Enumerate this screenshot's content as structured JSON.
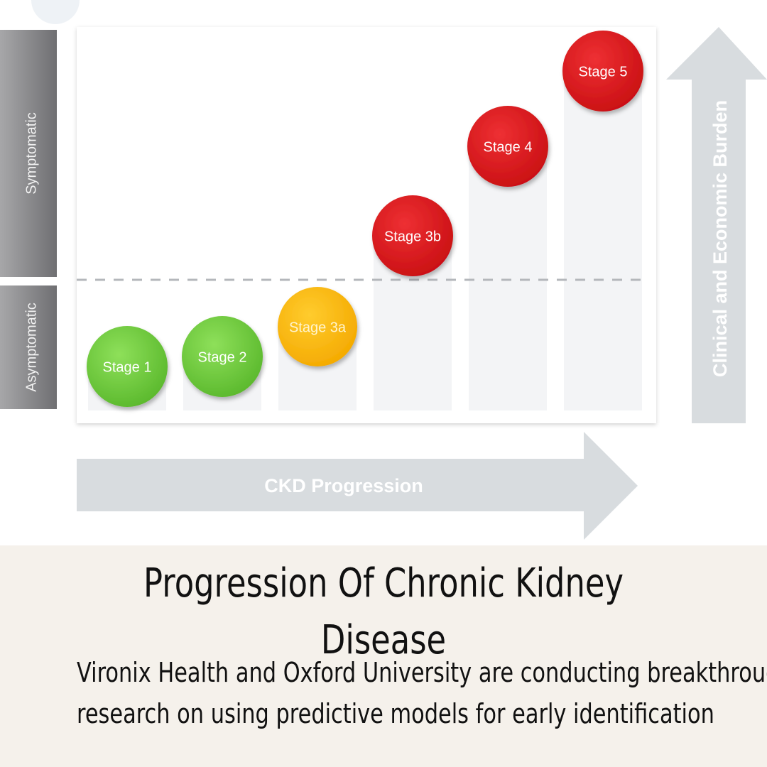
{
  "diagram": {
    "left_bar_labels": {
      "symptomatic": "Symptomatic",
      "asymptomatic": "Asymptomatic"
    },
    "vertical_arrow_label": "Clinical and Economic Burden",
    "horizontal_arrow_label": "CKD Progression",
    "stages": [
      {
        "label": "Stage 1",
        "color": "#6cc73a",
        "level": 1
      },
      {
        "label": "Stage 2",
        "color": "#6cc73a",
        "level": 2
      },
      {
        "label": "Stage 3a",
        "color": "#ffbb00",
        "level": 3
      },
      {
        "label": "Stage 3b",
        "color": "#e0181b",
        "level": 4
      },
      {
        "label": "Stage 4",
        "color": "#e0181b",
        "level": 5
      },
      {
        "label": "Stage 5",
        "color": "#e0181b",
        "level": 6
      }
    ]
  },
  "caption": {
    "title": "Progression Of Chronic Kidney Disease",
    "body_line1": "Vironix Health and Oxford University are conducting breakthrough",
    "body_line2": "research on using predictive models for early identification"
  },
  "colors": {
    "caption_background": "#f5f1eb",
    "arrow_gray": "#d8dcdf",
    "column_gray": "#f3f4f6",
    "side_bar_gray": "#8a8a8c"
  }
}
